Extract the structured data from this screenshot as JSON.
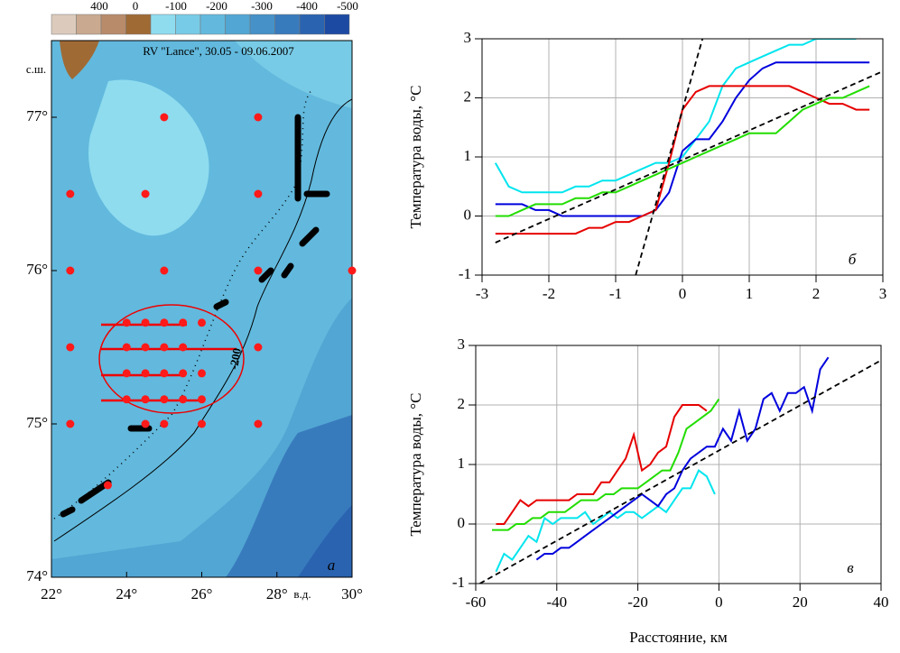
{
  "chart_data": [
    {
      "type": "map",
      "title": "RV \"Lance\", 30.05 - 09.06.2007",
      "xlabel": "в.д.",
      "ylabel": "с.ш.",
      "panel_label": "а",
      "contour_label": "-200",
      "xlim": [
        22,
        30
      ],
      "ylim": [
        74,
        77.5
      ],
      "xticks": [
        {
          "value": 22,
          "label": "22°"
        },
        {
          "value": 24,
          "label": "24°"
        },
        {
          "value": 26,
          "label": "26°"
        },
        {
          "value": 28,
          "label": "28°"
        },
        {
          "value": 30,
          "label": "30°"
        }
      ],
      "yticks": [
        {
          "value": 74,
          "label": "74°"
        },
        {
          "value": 75,
          "label": "75°"
        },
        {
          "value": 76,
          "label": "76°"
        },
        {
          "value": 77,
          "label": "77°"
        }
      ],
      "colorbar": {
        "colors": [
          "#dccbbd",
          "#c9a98f",
          "#b88b6b",
          "#a06a35",
          "#8fdcef",
          "#78cbe6",
          "#62b9dd",
          "#52a6d3",
          "#4591c8",
          "#387bbd",
          "#2a63b0",
          "#1c4aa2"
        ],
        "ticks": [
          400,
          0,
          -100,
          -200,
          -300,
          -400,
          -500
        ]
      },
      "stations": {
        "color": "#ff1a1a",
        "x": [
          25,
          27.5,
          22.5,
          24.5,
          27.5,
          22.5,
          25,
          27.5,
          30,
          22.5,
          27.5,
          22.5,
          24.5,
          25,
          26,
          27.5,
          24,
          24.5,
          25,
          25.5,
          26,
          24,
          24.5,
          25,
          25.5,
          24,
          24.5,
          25,
          25.5,
          26,
          24,
          24.5,
          25,
          25.5,
          26,
          23.5
        ],
        "y": [
          77,
          77,
          76.5,
          76.5,
          76.5,
          76,
          76,
          76,
          76,
          75.5,
          75.5,
          75,
          75,
          75,
          75,
          75,
          75.66,
          75.66,
          75.66,
          75.66,
          75.66,
          75.5,
          75.5,
          75.5,
          75.5,
          75.33,
          75.33,
          75.33,
          75.33,
          75.33,
          75.16,
          75.16,
          75.16,
          75.16,
          75.16,
          74.6
        ]
      }
    },
    {
      "type": "line",
      "ylabel": "Температура воды, °C",
      "panel_label": "б",
      "xlim": [
        -3,
        3
      ],
      "ylim": [
        -1,
        3
      ],
      "xticks": [
        -3,
        -2,
        -1,
        0,
        1,
        2,
        3
      ],
      "yticks": [
        -1,
        0,
        1,
        2,
        3
      ],
      "grid": true,
      "x": [
        -2.8,
        -2.6,
        -2.4,
        -2.2,
        -2.0,
        -1.8,
        -1.6,
        -1.4,
        -1.2,
        -1.0,
        -0.8,
        -0.6,
        -0.4,
        -0.2,
        0,
        0.2,
        0.4,
        0.6,
        0.8,
        1.0,
        1.2,
        1.4,
        1.6,
        1.8,
        2.0,
        2.2,
        2.4,
        2.6,
        2.8
      ],
      "series": [
        {
          "color": "#00e5ee",
          "values": [
            0.9,
            0.5,
            0.4,
            0.4,
            0.4,
            0.4,
            0.5,
            0.5,
            0.6,
            0.6,
            0.7,
            0.8,
            0.9,
            0.9,
            1.0,
            1.3,
            1.6,
            2.2,
            2.5,
            2.6,
            2.7,
            2.8,
            2.9,
            2.9,
            3.0,
            3.0,
            3.0,
            3.0,
            null
          ]
        },
        {
          "color": "#0000dd",
          "values": [
            0.2,
            0.2,
            0.2,
            0.1,
            0.1,
            0,
            0,
            0,
            0,
            0,
            0,
            0,
            0.1,
            0.4,
            1.1,
            1.3,
            1.3,
            1.6,
            2.0,
            2.3,
            2.5,
            2.6,
            2.6,
            2.6,
            2.6,
            2.6,
            2.6,
            2.6,
            2.6
          ]
        },
        {
          "color": "#e60000",
          "values": [
            -0.3,
            -0.3,
            -0.3,
            -0.3,
            -0.3,
            -0.3,
            -0.3,
            -0.2,
            -0.2,
            -0.1,
            -0.1,
            0,
            0.1,
            0.9,
            1.8,
            2.1,
            2.2,
            2.2,
            2.2,
            2.2,
            2.2,
            2.2,
            2.2,
            2.1,
            2.0,
            1.9,
            1.9,
            1.8,
            1.8
          ]
        },
        {
          "color": "#22dd00",
          "values": [
            0,
            0,
            0.1,
            0.2,
            0.2,
            0.2,
            0.3,
            0.3,
            0.4,
            0.4,
            0.5,
            0.6,
            0.7,
            0.8,
            0.9,
            1.0,
            1.1,
            1.2,
            1.3,
            1.4,
            1.4,
            1.4,
            1.6,
            1.8,
            1.9,
            2.0,
            2.0,
            2.1,
            2.2
          ]
        },
        {
          "color": "#000000",
          "dashed": true,
          "x": [
            -0.7,
            0.3
          ],
          "values": [
            -1,
            3
          ]
        },
        {
          "color": "#000000",
          "dashed": true,
          "x": [
            -2.8,
            3
          ],
          "values": [
            -0.45,
            2.45
          ]
        }
      ]
    },
    {
      "type": "line",
      "ylabel": "Температура воды, °C",
      "xlabel": "Расстояние, км",
      "panel_label": "в",
      "xlim": [
        -60,
        40
      ],
      "ylim": [
        -1,
        3
      ],
      "xticks": [
        -60,
        -40,
        -20,
        0,
        20,
        40
      ],
      "yticks": [
        -1,
        0,
        1,
        2,
        3
      ],
      "grid": true,
      "series": [
        {
          "color": "#e60000",
          "x": [
            -55,
            -53,
            -51,
            -49,
            -47,
            -45,
            -43,
            -41,
            -39,
            -37,
            -35,
            -33,
            -31,
            -29,
            -27,
            -25,
            -23,
            -21,
            -19,
            -17,
            -15,
            -13,
            -11,
            -9,
            -7,
            -5,
            -3
          ],
          "values": [
            0,
            0,
            0.2,
            0.4,
            0.3,
            0.4,
            0.4,
            0.4,
            0.4,
            0.4,
            0.5,
            0.5,
            0.5,
            0.7,
            0.7,
            0.9,
            1.1,
            1.5,
            0.9,
            1.0,
            1.2,
            1.3,
            1.8,
            2.0,
            2.0,
            2.0,
            1.9
          ]
        },
        {
          "color": "#22dd00",
          "x": [
            -56,
            -54,
            -52,
            -50,
            -48,
            -46,
            -44,
            -42,
            -40,
            -38,
            -36,
            -34,
            -32,
            -30,
            -28,
            -26,
            -24,
            -22,
            -20,
            -18,
            -16,
            -14,
            -12,
            -10,
            -8,
            -6,
            -4,
            -2,
            0
          ],
          "values": [
            -0.1,
            -0.1,
            -0.1,
            0,
            0,
            0.1,
            0.1,
            0.2,
            0.2,
            0.2,
            0.3,
            0.4,
            0.4,
            0.4,
            0.5,
            0.5,
            0.6,
            0.6,
            0.6,
            0.7,
            0.8,
            0.9,
            0.9,
            1.2,
            1.6,
            1.7,
            1.8,
            1.9,
            2.1
          ]
        },
        {
          "color": "#00e5ee",
          "x": [
            -55,
            -53,
            -51,
            -49,
            -47,
            -45,
            -43,
            -41,
            -39,
            -37,
            -35,
            -33,
            -31,
            -29,
            -27,
            -25,
            -23,
            -21,
            -19,
            -17,
            -15,
            -13,
            -11,
            -9,
            -7,
            -5,
            -3,
            -1
          ],
          "values": [
            -0.8,
            -0.5,
            -0.6,
            -0.4,
            -0.2,
            -0.3,
            0.1,
            0,
            0.1,
            0.1,
            0.1,
            0.2,
            0,
            0.1,
            0.2,
            0.1,
            0.2,
            0.2,
            0.1,
            0.2,
            0.3,
            0.2,
            0.4,
            0.6,
            0.6,
            0.9,
            0.8,
            0.5
          ]
        },
        {
          "color": "#0000dd",
          "x": [
            -45,
            -43,
            -41,
            -39,
            -37,
            -35,
            -33,
            -31,
            -29,
            -27,
            -25,
            -23,
            -21,
            -19,
            -17,
            -15,
            -13,
            -11,
            -9,
            -7,
            -5,
            -3,
            -1,
            1,
            3,
            5,
            7,
            9,
            11,
            13,
            15,
            17,
            19,
            21,
            23,
            25,
            27
          ],
          "values": [
            -0.6,
            -0.5,
            -0.5,
            -0.4,
            -0.4,
            -0.3,
            -0.2,
            -0.1,
            0,
            0.1,
            0.2,
            0.3,
            0.4,
            0.5,
            0.4,
            0.3,
            0.5,
            0.6,
            0.9,
            1.1,
            1.2,
            1.3,
            1.3,
            1.6,
            1.4,
            1.9,
            1.4,
            1.6,
            2.1,
            2.2,
            1.9,
            2.2,
            2.2,
            2.3,
            1.9,
            2.6,
            2.8
          ]
        },
        {
          "color": "#000000",
          "dashed": true,
          "x": [
            -59,
            40
          ],
          "values": [
            -1,
            2.75
          ]
        }
      ]
    }
  ]
}
